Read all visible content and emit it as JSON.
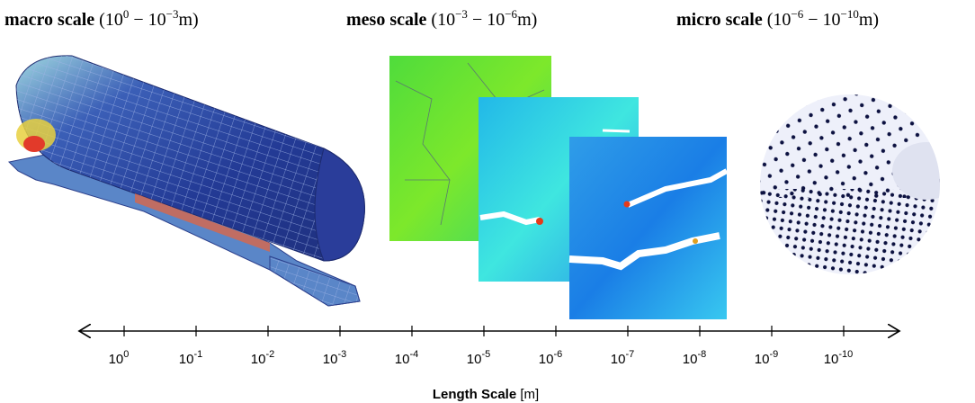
{
  "headings": [
    {
      "name": "macro scale",
      "range": [
        {
          "text": "(10"
        },
        {
          "sup": "0"
        },
        {
          "text": " − 10"
        },
        {
          "sup": "−3"
        },
        {
          "text": "m)"
        }
      ]
    },
    {
      "name": "meso scale",
      "range": [
        {
          "text": "(10"
        },
        {
          "sup": "−3"
        },
        {
          "text": " − 10"
        },
        {
          "sup": "−6"
        },
        {
          "text": "m)"
        }
      ]
    },
    {
      "name": "micro scale",
      "range": [
        {
          "text": "(10"
        },
        {
          "sup": "−6"
        },
        {
          "text": " − 10"
        },
        {
          "sup": "−10"
        },
        {
          "text": "m)"
        }
      ]
    }
  ],
  "axis": {
    "ticks": [
      {
        "base": "10",
        "exp": "0"
      },
      {
        "base": "10",
        "exp": "-1"
      },
      {
        "base": "10",
        "exp": "-2"
      },
      {
        "base": "10",
        "exp": "-3"
      },
      {
        "base": "10",
        "exp": "-4"
      },
      {
        "base": "10",
        "exp": "-5"
      },
      {
        "base": "10",
        "exp": "-6"
      },
      {
        "base": "10",
        "exp": "-7"
      },
      {
        "base": "10",
        "exp": "-8"
      },
      {
        "base": "10",
        "exp": "-9"
      },
      {
        "base": "10",
        "exp": "-10"
      }
    ],
    "label": "Length Scale",
    "unit": "[m]"
  }
}
